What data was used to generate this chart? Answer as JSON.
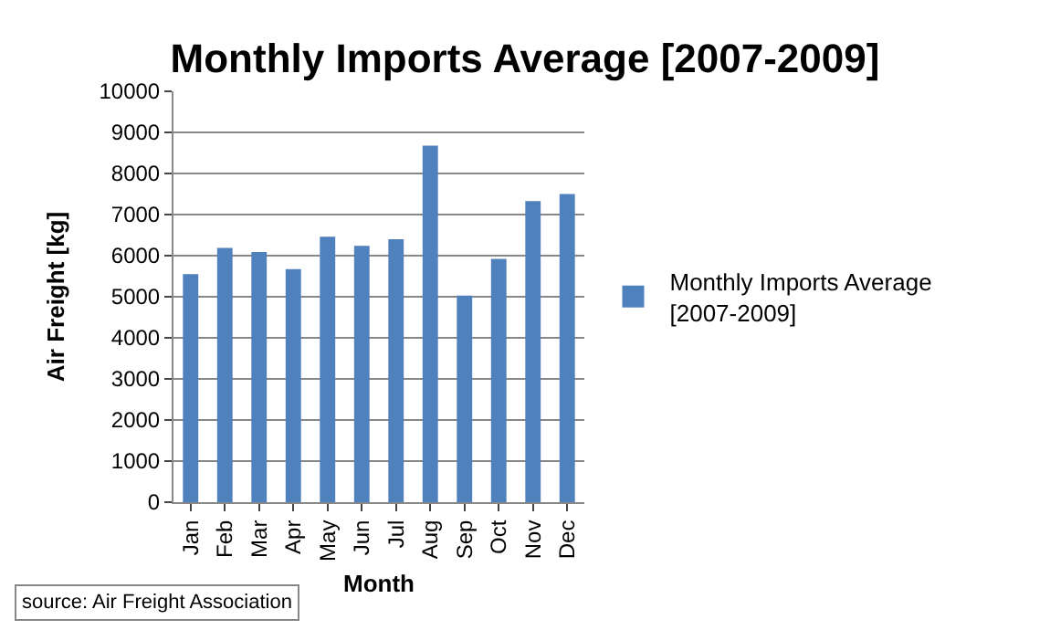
{
  "chart_data": {
    "type": "bar",
    "title": "Monthly Imports Average [2007-2009]",
    "xlabel": "Month",
    "ylabel": "Air Freight [kg]",
    "categories": [
      "Jan",
      "Feb",
      "Mar",
      "Apr",
      "May",
      "Jun",
      "Jul",
      "Aug",
      "Sep",
      "Oct",
      "Nov",
      "Dec"
    ],
    "series": [
      {
        "name": "Monthly Imports Average [2007-2009]",
        "color": "#4f81bd",
        "values": [
          5550,
          6190,
          6090,
          5670,
          6460,
          6240,
          6400,
          8680,
          5030,
          5920,
          7330,
          7500
        ]
      }
    ],
    "ylim": [
      0,
      10000
    ],
    "yticks": [
      0,
      1000,
      2000,
      3000,
      4000,
      5000,
      6000,
      7000,
      8000,
      9000,
      10000
    ],
    "grid": "y",
    "legend": "right",
    "annotations": [
      "source: Air Freight Association"
    ]
  }
}
